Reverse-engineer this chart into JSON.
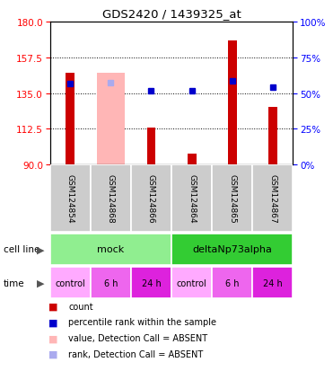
{
  "title": "GDS2420 / 1439325_at",
  "samples": [
    "GSM124854",
    "GSM124868",
    "GSM124866",
    "GSM124864",
    "GSM124865",
    "GSM124867"
  ],
  "count_values": [
    148.0,
    null,
    113.5,
    97.0,
    168.0,
    126.0
  ],
  "absent_bar_values": [
    null,
    148.0,
    null,
    null,
    null,
    null
  ],
  "rank_values": [
    141.0,
    null,
    136.5,
    136.5,
    142.5,
    138.5
  ],
  "absent_rank_values": [
    null,
    141.5,
    null,
    null,
    null,
    null
  ],
  "ylim_left": [
    90,
    180
  ],
  "ylim_right": [
    0,
    100
  ],
  "yticks_left": [
    90,
    112.5,
    135,
    157.5,
    180
  ],
  "yticks_right": [
    0,
    25,
    50,
    75,
    100
  ],
  "cell_line_groups": [
    {
      "label": "mock",
      "start": 0,
      "end": 3,
      "color": "#90ee90"
    },
    {
      "label": "deltaNp73alpha",
      "start": 3,
      "end": 6,
      "color": "#33cc33"
    }
  ],
  "time_labels": [
    "control",
    "6 h",
    "24 h",
    "control",
    "6 h",
    "24 h"
  ],
  "time_bg_colors": [
    "#ffaaff",
    "#ee66ee",
    "#dd22dd",
    "#ffaaff",
    "#ee66ee",
    "#dd22dd"
  ],
  "count_color": "#cc0000",
  "absent_bar_color": "#ffb6b6",
  "rank_color": "#0000cc",
  "absent_rank_color": "#aaaaee",
  "legend_items": [
    {
      "label": "count",
      "color": "#cc0000"
    },
    {
      "label": "percentile rank within the sample",
      "color": "#0000cc"
    },
    {
      "label": "value, Detection Call = ABSENT",
      "color": "#ffb6b6"
    },
    {
      "label": "rank, Detection Call = ABSENT",
      "color": "#aaaaee"
    }
  ]
}
